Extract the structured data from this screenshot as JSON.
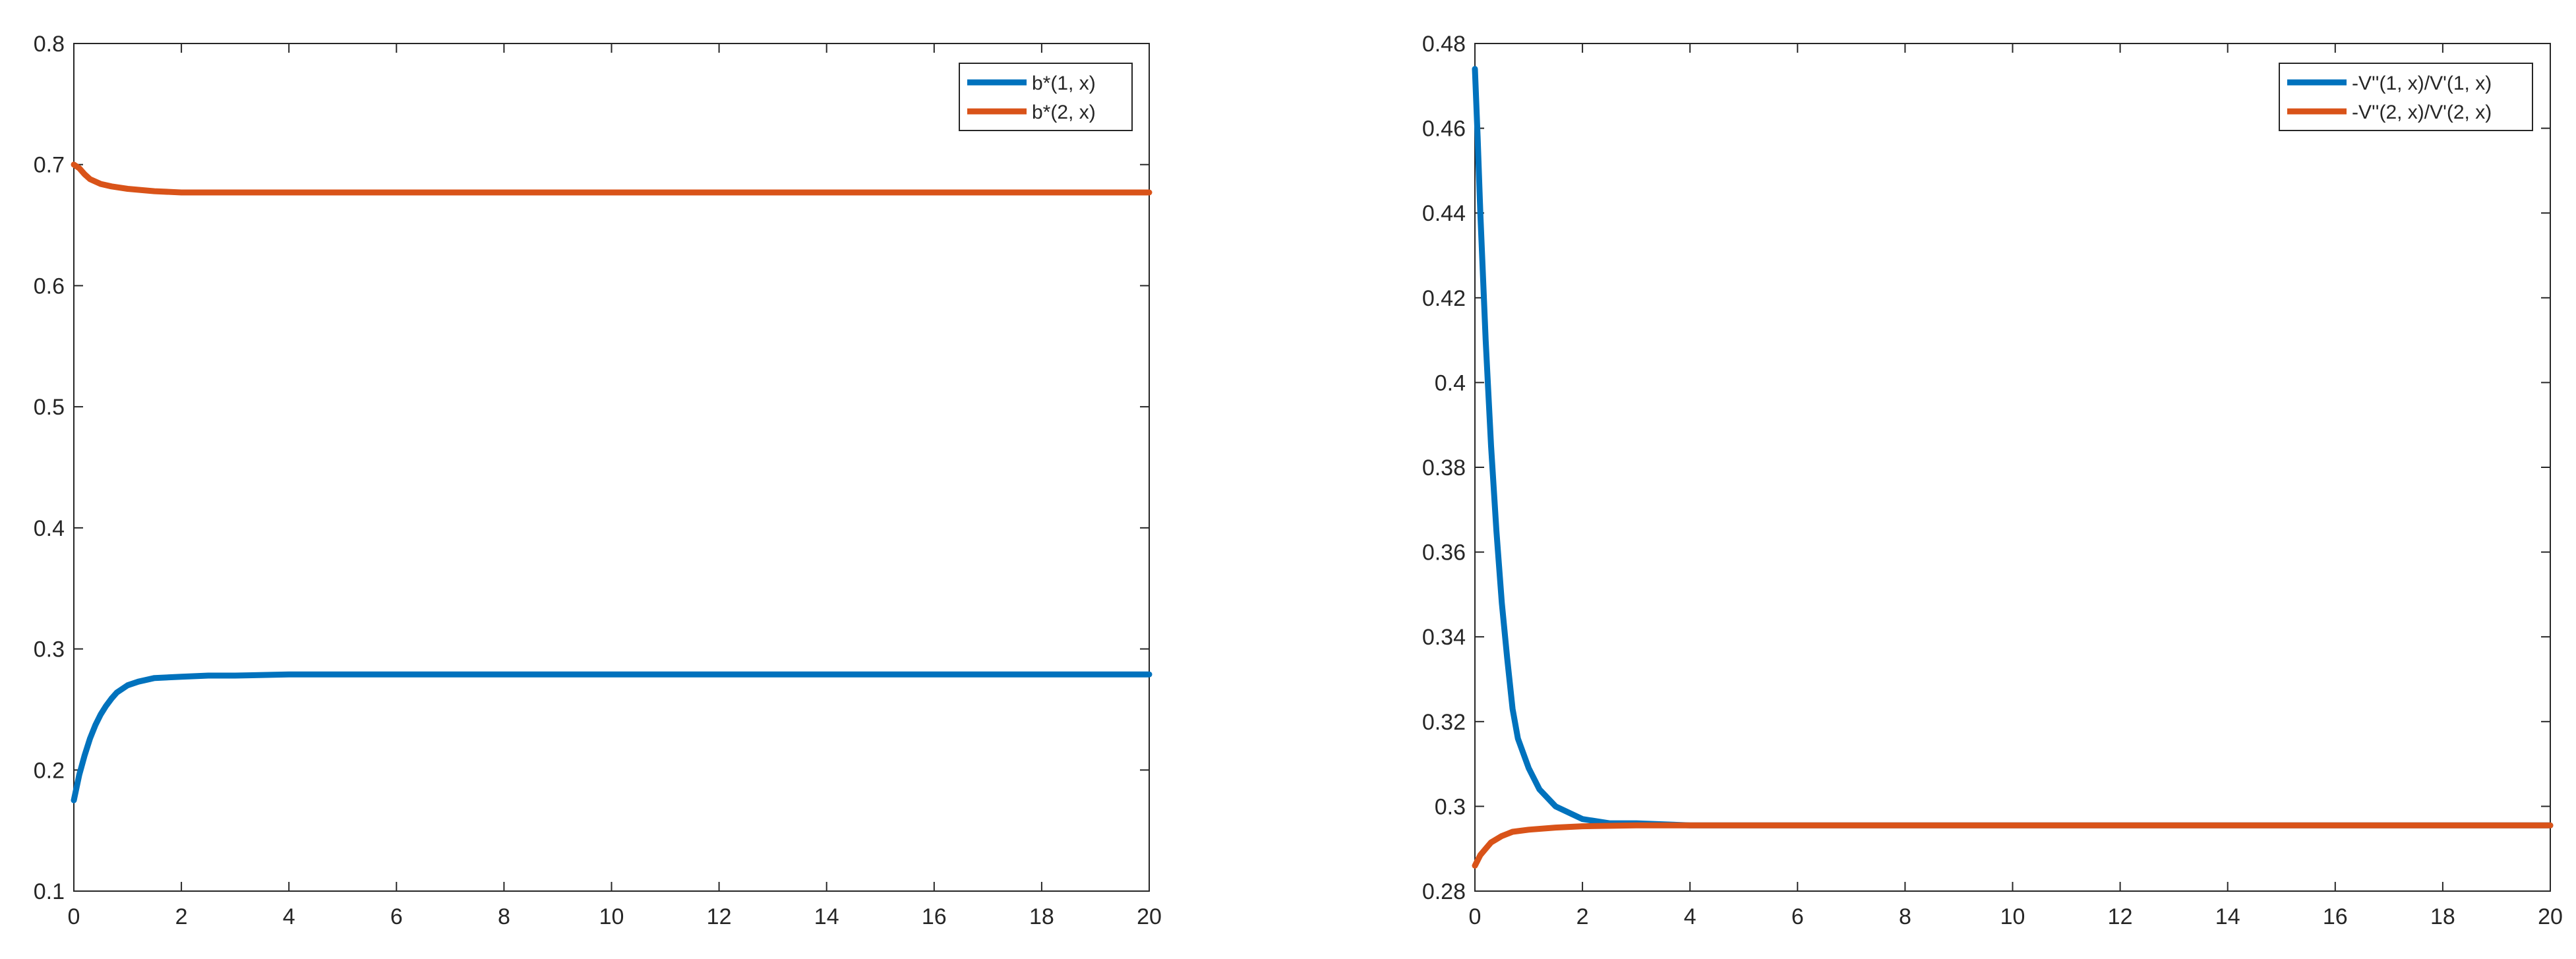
{
  "chart_data": [
    {
      "type": "line",
      "xlim": [
        0,
        20
      ],
      "ylim": [
        0.1,
        0.8
      ],
      "x_ticks": [
        "0",
        "2",
        "4",
        "6",
        "8",
        "10",
        "12",
        "14",
        "16",
        "18",
        "20"
      ],
      "y_ticks": [
        "0.1",
        "0.2",
        "0.3",
        "0.4",
        "0.5",
        "0.6",
        "0.7",
        "0.8"
      ],
      "grid": false,
      "legend_location": "top-right",
      "series": [
        {
          "name": "b*(1, x)",
          "color": "#0072BD",
          "x": [
            0,
            0.1,
            0.2,
            0.3,
            0.4,
            0.5,
            0.6,
            0.7,
            0.8,
            1.0,
            1.2,
            1.5,
            2.0,
            2.5,
            3.0,
            4.0,
            5.0,
            6.0,
            8.0,
            10.0,
            12.0,
            14.0,
            16.0,
            18.0,
            20.0
          ],
          "y": [
            0.175,
            0.196,
            0.212,
            0.226,
            0.237,
            0.246,
            0.253,
            0.259,
            0.264,
            0.27,
            0.273,
            0.276,
            0.277,
            0.278,
            0.278,
            0.279,
            0.279,
            0.279,
            0.279,
            0.279,
            0.279,
            0.279,
            0.279,
            0.279,
            0.279
          ]
        },
        {
          "name": "b*(2, x)",
          "color": "#D95319",
          "x": [
            0,
            0.1,
            0.2,
            0.3,
            0.5,
            0.7,
            1.0,
            1.5,
            2.0,
            3.0,
            4.0,
            6.0,
            8.0,
            10.0,
            12.0,
            14.0,
            16.0,
            18.0,
            20.0
          ],
          "y": [
            0.7,
            0.697,
            0.692,
            0.688,
            0.684,
            0.682,
            0.68,
            0.678,
            0.677,
            0.677,
            0.677,
            0.677,
            0.677,
            0.677,
            0.677,
            0.677,
            0.677,
            0.677,
            0.677
          ]
        }
      ]
    },
    {
      "type": "line",
      "xlim": [
        0,
        20
      ],
      "ylim": [
        0.28,
        0.48
      ],
      "x_ticks": [
        "0",
        "2",
        "4",
        "6",
        "8",
        "10",
        "12",
        "14",
        "16",
        "18",
        "20"
      ],
      "y_ticks": [
        "0.28",
        "0.3",
        "0.32",
        "0.34",
        "0.36",
        "0.38",
        "0.4",
        "0.42",
        "0.44",
        "0.46",
        "0.48"
      ],
      "grid": false,
      "legend_location": "top-right",
      "series": [
        {
          "name": "-V''(1, x)/V'(1, x)",
          "color": "#0072BD",
          "x": [
            0,
            0.05,
            0.1,
            0.2,
            0.3,
            0.4,
            0.5,
            0.6,
            0.7,
            0.8,
            1.0,
            1.2,
            1.5,
            2.0,
            2.5,
            3.0,
            4.0,
            5.0,
            6.0,
            8.0,
            10.0,
            12.0,
            14.0,
            16.0,
            18.0,
            20.0
          ],
          "y": [
            0.474,
            0.458,
            0.44,
            0.41,
            0.385,
            0.365,
            0.348,
            0.335,
            0.323,
            0.316,
            0.309,
            0.304,
            0.3,
            0.297,
            0.296,
            0.296,
            0.2955,
            0.2955,
            0.2955,
            0.2955,
            0.2955,
            0.2955,
            0.2955,
            0.2955,
            0.2955,
            0.2955
          ]
        },
        {
          "name": "-V''(2, x)/V'(2, x)",
          "color": "#D95319",
          "x": [
            0,
            0.1,
            0.2,
            0.3,
            0.5,
            0.7,
            1.0,
            1.5,
            2.0,
            3.0,
            4.0,
            6.0,
            8.0,
            10.0,
            12.0,
            14.0,
            16.0,
            18.0,
            20.0
          ],
          "y": [
            0.286,
            0.2885,
            0.29,
            0.2915,
            0.293,
            0.294,
            0.2945,
            0.295,
            0.2953,
            0.2955,
            0.2955,
            0.2955,
            0.2955,
            0.2955,
            0.2955,
            0.2955,
            0.2955,
            0.2955,
            0.2955
          ]
        }
      ]
    }
  ]
}
